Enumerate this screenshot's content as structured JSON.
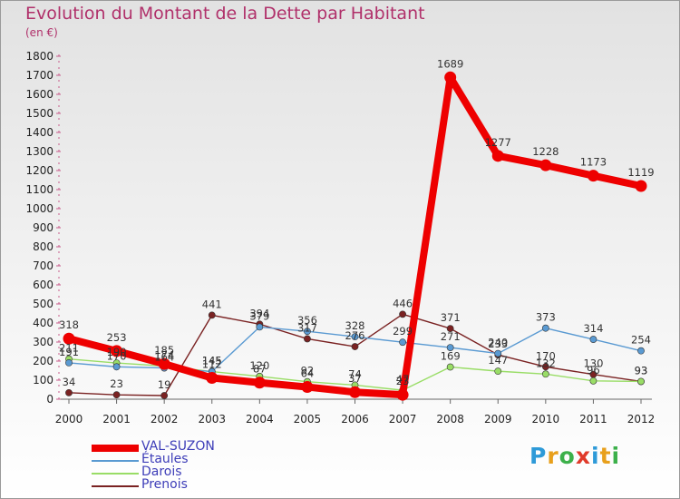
{
  "header": {
    "title": "Evolution du Montant de la Dette par Habitant",
    "subtitle": "(en €)"
  },
  "logo": {
    "text": "Proxiti",
    "letters": [
      "P",
      "r",
      "o",
      "x",
      "i",
      "t",
      "i"
    ],
    "colors": [
      "#2e9ad8",
      "#e8a01c",
      "#3cb04a",
      "#e03a2a",
      "#2e9ad8",
      "#e8a01c",
      "#3cb04a"
    ]
  },
  "chart_data": {
    "type": "line",
    "categories": [
      "2000",
      "2001",
      "2002",
      "2003",
      "2004",
      "2005",
      "2006",
      "2007",
      "2008",
      "2009",
      "2010",
      "2011",
      "2012"
    ],
    "ylim": [
      0,
      1800
    ],
    "yticks": [
      0,
      100,
      200,
      300,
      400,
      500,
      600,
      700,
      800,
      900,
      1000,
      1100,
      1200,
      1300,
      1400,
      1500,
      1600,
      1700,
      1800
    ],
    "grid": false,
    "legend_position": "bottom-left",
    "series": [
      {
        "name": "VAL-SUZON",
        "color": "#ee0000",
        "values": [
          318,
          253,
          185,
          112,
          87,
          64,
          37,
          23,
          1689,
          1277,
          1228,
          1173,
          1119
        ]
      },
      {
        "name": "Étaules",
        "color": "#5a9ad2",
        "values": [
          191,
          170,
          164,
          145,
          379,
          356,
          328,
          299,
          271,
          240,
          373,
          314,
          254
        ]
      },
      {
        "name": "Darois",
        "color": "#99dd66",
        "values": [
          211,
          190,
          174,
          145,
          120,
          92,
          74,
          47,
          169,
          147,
          132,
          96,
          93
        ]
      },
      {
        "name": "Prenois",
        "color": "#7a2222",
        "values": [
          34,
          23,
          19,
          441,
          394,
          317,
          276,
          446,
          371,
          233,
          170,
          130,
          93
        ]
      }
    ]
  }
}
